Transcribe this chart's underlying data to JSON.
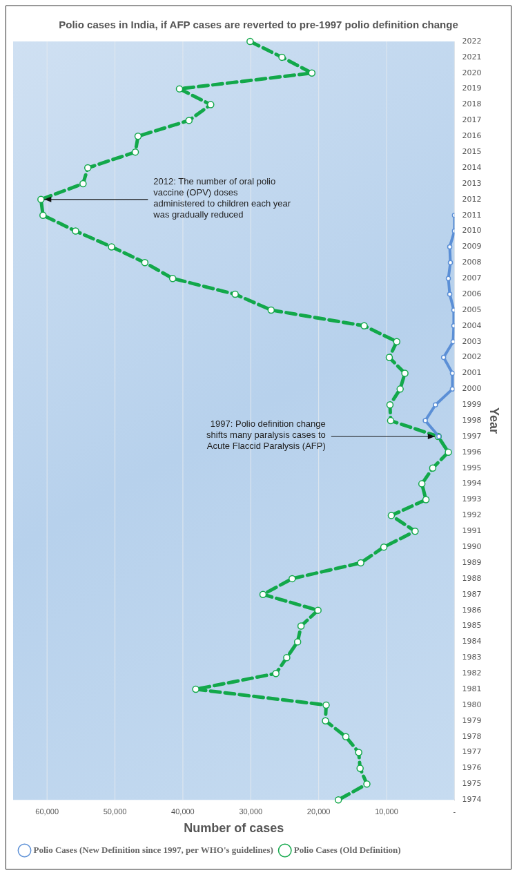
{
  "chart_data": {
    "type": "line",
    "orientation": "horizontal",
    "title": "Polio cases in India, if AFP cases are reverted to pre-1997 polio definition change",
    "xlabel": "Number of cases",
    "ylabel": "Year",
    "categories": [
      "2022",
      "2021",
      "2020",
      "2019",
      "2018",
      "2017",
      "2016",
      "2015",
      "2014",
      "2013",
      "2012",
      "2011",
      "2010",
      "2009",
      "2008",
      "2007",
      "2006",
      "2005",
      "2004",
      "2003",
      "2002",
      "2001",
      "2000",
      "1999",
      "1998",
      "1997",
      "1996",
      "1995",
      "1994",
      "1993",
      "1992",
      "1991",
      "1990",
      "1989",
      "1988",
      "1987",
      "1986",
      "1985",
      "1984",
      "1983",
      "1982",
      "1981",
      "1980",
      "1979",
      "1978",
      "1977",
      "1976",
      "1975",
      "1974"
    ],
    "series": [
      {
        "name": "Polio Cases (New Definition since 1997, per WHO's guidelines)",
        "color": "#5b8fd6",
        "line_style": "solid",
        "values": [
          null,
          null,
          null,
          null,
          null,
          null,
          null,
          null,
          null,
          null,
          null,
          0,
          0,
          700,
          600,
          900,
          700,
          100,
          100,
          200,
          1600,
          300,
          300,
          2800,
          4300,
          2300,
          null,
          null,
          null,
          null,
          null,
          null,
          null,
          null,
          null,
          null,
          null,
          null,
          null,
          null,
          null,
          null,
          null,
          null,
          null,
          null,
          null,
          null,
          null
        ]
      },
      {
        "name": "Polio Cases (Old Definition)",
        "color": "#12a84a",
        "line_style": "dashed",
        "values": [
          30100,
          25400,
          21000,
          40500,
          35900,
          39100,
          46600,
          47000,
          54000,
          54700,
          60900,
          60600,
          55800,
          50500,
          45600,
          41500,
          32300,
          27000,
          13300,
          8500,
          9600,
          7300,
          8000,
          9500,
          9400,
          2400,
          900,
          3200,
          4800,
          4200,
          9300,
          5800,
          10400,
          13800,
          23900,
          28200,
          20100,
          22600,
          23100,
          24700,
          26300,
          38100,
          18900,
          19000,
          16000,
          14100,
          13900,
          12900,
          17100
        ]
      }
    ],
    "xlim": [
      65000,
      0
    ],
    "xticks": [
      {
        "value": 60000,
        "label": "60,000"
      },
      {
        "value": 50000,
        "label": "50,000"
      },
      {
        "value": 40000,
        "label": "40,000"
      },
      {
        "value": 30000,
        "label": "30,000"
      },
      {
        "value": 20000,
        "label": "20,000"
      },
      {
        "value": 10000,
        "label": "10,000"
      },
      {
        "value": 0,
        "label": "-"
      }
    ],
    "grid": "x",
    "legend": "bottom left",
    "marker": "circle",
    "annotations": [
      {
        "text": "2012: The number of oral polio vaccine (OPV) doses administered to children each year was gradually reduced",
        "x": 60900,
        "y": "2012"
      },
      {
        "text": "1997: Polio definition change shifts many paralysis cases to Acute Flaccid Paralysis (AFP)",
        "x": 2400,
        "y": "1997"
      }
    ]
  }
}
